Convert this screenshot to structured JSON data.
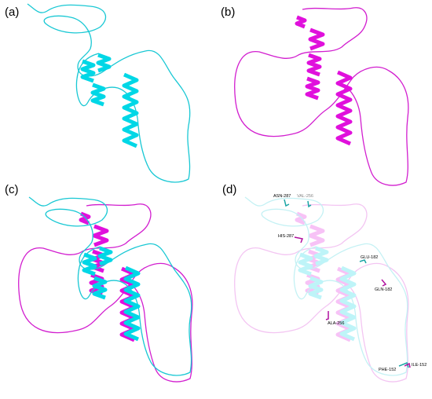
{
  "panels": [
    {
      "label": "(a)"
    },
    {
      "label": "(b)"
    },
    {
      "label": "(c)"
    },
    {
      "label": "(d)"
    }
  ],
  "residues": [
    {
      "label": "ASN-287"
    },
    {
      "label": "VAL-256"
    },
    {
      "label": "HIS-287"
    },
    {
      "label": "GLU-182"
    },
    {
      "label": "GLN-182"
    },
    {
      "label": "ALA-256"
    },
    {
      "label": "PHE-152"
    },
    {
      "label": "ILE-152"
    }
  ]
}
